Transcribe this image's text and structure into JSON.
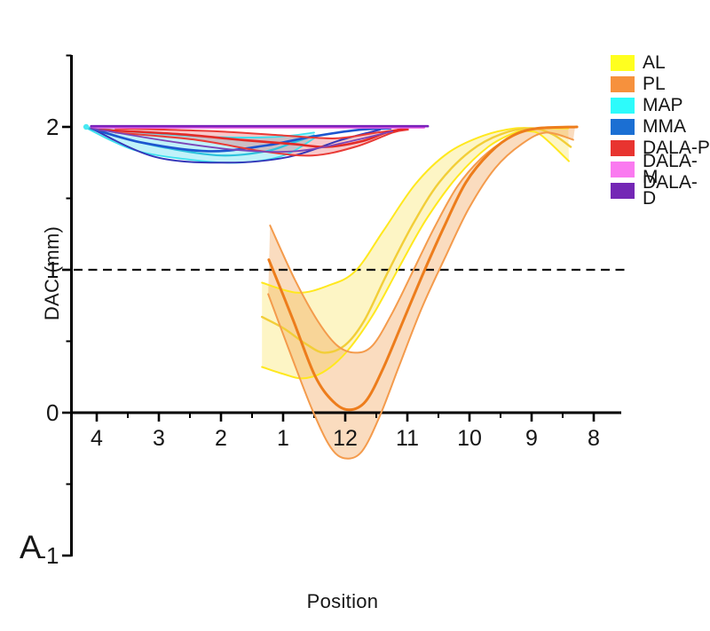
{
  "figure_type": "scientific line chart with confidence bands",
  "chart_data": {
    "type": "line",
    "title": "",
    "xlabel": "Position",
    "ylabel": "DAC (mm)",
    "panel_label": "A",
    "x_units": "tick index (0='4', 1='3', 2='2', 3='1', 4='12', 5='11', 6='10', 7='9', 8='8')",
    "x_tick_labels": [
      "4",
      "3",
      "2",
      "1",
      "12",
      "11",
      "10",
      "9",
      "8"
    ],
    "y_tick_labels": [
      "2",
      "1",
      "0",
      "-1"
    ],
    "y_major_values": [
      2,
      1,
      0,
      -1
    ],
    "y_minor_values": [
      2.5,
      1.5,
      0.5,
      -0.5
    ],
    "ylim_drawn": [
      -1,
      2.5
    ],
    "reference_line_y": 1,
    "grid": false,
    "legend_position": "top-right-outside",
    "axis_color": "#000000",
    "reference_line_color": "#111111",
    "start_marker": {
      "x": -0.17,
      "y": 2.0,
      "color": "#49E9F2"
    },
    "series": [
      {
        "name": "MAP",
        "edge_color": "#3BE0EE",
        "center_color": "#2CC2DC",
        "fill": "rgba(60,215,235,0.32)",
        "edge_width": 1.8,
        "center_width": 2.2,
        "center": [
          [
            -0.2,
            2.0
          ],
          [
            0.44,
            1.92
          ],
          [
            1.16,
            1.85
          ],
          [
            2.01,
            1.8
          ],
          [
            2.73,
            1.83
          ],
          [
            3.16,
            1.89
          ],
          [
            3.5,
            1.94
          ]
        ],
        "upper": [
          [
            -0.2,
            2.0
          ],
          [
            0.73,
            1.96
          ],
          [
            1.87,
            1.93
          ],
          [
            2.87,
            1.93
          ],
          [
            3.5,
            1.96
          ]
        ],
        "lower": [
          [
            -0.2,
            2.0
          ],
          [
            0.59,
            1.84
          ],
          [
            1.51,
            1.77
          ],
          [
            2.3,
            1.75
          ],
          [
            3.01,
            1.8
          ],
          [
            3.5,
            1.92
          ]
        ]
      },
      {
        "name": "MMA",
        "edge_color": "#3436B8",
        "center_color": "#1D55CF",
        "fill": null,
        "edge_width": 2.0,
        "center_width": 2.6,
        "center": [
          [
            -0.09,
            1.99
          ],
          [
            0.73,
            1.89
          ],
          [
            1.8,
            1.83
          ],
          [
            2.73,
            1.87
          ],
          [
            3.44,
            1.93
          ],
          [
            4.23,
            1.98
          ],
          [
            4.73,
            1.99
          ]
        ],
        "lower": [
          [
            -0.09,
            1.99
          ],
          [
            0.94,
            1.79
          ],
          [
            2.09,
            1.75
          ],
          [
            3.09,
            1.79
          ],
          [
            3.94,
            1.91
          ],
          [
            4.56,
            1.98
          ]
        ]
      },
      {
        "name": "DALA-P",
        "edge_color": "#E93A35",
        "center_color": "#E22B28",
        "fill": "rgba(230,60,70,0.28)",
        "edge_width": 2.0,
        "center_width": 2.6,
        "center": [
          [
            0.04,
            1.98
          ],
          [
            1.3,
            1.95
          ],
          [
            2.3,
            1.91
          ],
          [
            3.16,
            1.88
          ],
          [
            3.7,
            1.86
          ],
          [
            4.27,
            1.9
          ],
          [
            4.66,
            1.96
          ],
          [
            4.99,
            1.99
          ]
        ],
        "upper": [
          [
            0.3,
            1.99
          ],
          [
            1.87,
            1.97
          ],
          [
            3.01,
            1.94
          ],
          [
            3.84,
            1.92
          ],
          [
            4.51,
            1.96
          ],
          [
            5.01,
            1.99
          ]
        ],
        "lower": [
          [
            0.3,
            1.96
          ],
          [
            1.59,
            1.91
          ],
          [
            2.66,
            1.83
          ],
          [
            3.47,
            1.8
          ],
          [
            4.16,
            1.86
          ],
          [
            4.76,
            1.96
          ],
          [
            5.01,
            1.98
          ]
        ]
      },
      {
        "name": "DALA-M",
        "edge_color": "#EE63E6",
        "center_color": "#EE63E6",
        "fill": null,
        "edge_width": 2.2,
        "center_width": 2.2,
        "center": [
          [
            -0.09,
            1.995
          ],
          [
            2.6,
            1.995
          ],
          [
            5.27,
            1.995
          ]
        ]
      },
      {
        "name": "DALA-D",
        "edge_color": "#7A45B8",
        "center_color": "#7A23BB",
        "fill": null,
        "edge_width": 1.8,
        "center_width": 2.6,
        "center": [
          [
            -0.09,
            2.005
          ],
          [
            2.6,
            2.005
          ],
          [
            5.33,
            2.005
          ]
        ],
        "lower": [
          [
            -0.09,
            1.99
          ],
          [
            1.16,
            1.9
          ],
          [
            2.23,
            1.84
          ],
          [
            3.2,
            1.83
          ],
          [
            4.09,
            1.9
          ],
          [
            4.76,
            1.97
          ]
        ]
      },
      {
        "name": "AL",
        "edge_color": "#FFE81E",
        "center_color": "#F2CE38",
        "fill": "rgba(250,225,90,0.35)",
        "edge_width": 2.0,
        "center_width": 2.4,
        "center": [
          [
            2.66,
            0.67
          ],
          [
            3.01,
            0.59
          ],
          [
            3.37,
            0.48
          ],
          [
            3.66,
            0.42
          ],
          [
            3.99,
            0.47
          ],
          [
            4.3,
            0.64
          ],
          [
            4.66,
            0.96
          ],
          [
            5.09,
            1.32
          ],
          [
            5.51,
            1.61
          ],
          [
            6.01,
            1.83
          ],
          [
            6.51,
            1.95
          ],
          [
            6.99,
            1.99
          ],
          [
            7.33,
            1.95
          ],
          [
            7.63,
            1.86
          ]
        ],
        "upper": [
          [
            2.66,
            0.91
          ],
          [
            3.23,
            0.84
          ],
          [
            3.73,
            0.89
          ],
          [
            4.16,
            0.99
          ],
          [
            4.61,
            1.27
          ],
          [
            5.13,
            1.6
          ],
          [
            5.66,
            1.82
          ],
          [
            6.23,
            1.94
          ],
          [
            6.73,
            1.99
          ],
          [
            7.16,
            1.99
          ],
          [
            7.59,
            1.99
          ]
        ],
        "lower": [
          [
            2.66,
            0.32
          ],
          [
            3.01,
            0.27
          ],
          [
            3.3,
            0.24
          ],
          [
            3.63,
            0.28
          ],
          [
            4.01,
            0.42
          ],
          [
            4.44,
            0.68
          ],
          [
            4.87,
            1.02
          ],
          [
            5.3,
            1.35
          ],
          [
            5.8,
            1.65
          ],
          [
            6.3,
            1.86
          ],
          [
            6.73,
            1.96
          ],
          [
            6.94,
            1.97
          ],
          [
            7.16,
            1.94
          ],
          [
            7.6,
            1.76
          ]
        ]
      },
      {
        "name": "PL",
        "edge_color": "#F49B4C",
        "center_color": "#ED7D1C",
        "fill": "rgba(240,150,60,0.33)",
        "edge_width": 2.0,
        "center_width": 3.0,
        "center": [
          [
            2.77,
            1.07
          ],
          [
            3.16,
            0.65
          ],
          [
            3.51,
            0.26
          ],
          [
            3.8,
            0.08
          ],
          [
            4.06,
            0.02
          ],
          [
            4.33,
            0.08
          ],
          [
            4.61,
            0.31
          ],
          [
            4.94,
            0.65
          ],
          [
            5.27,
            0.99
          ],
          [
            5.59,
            1.3
          ],
          [
            5.94,
            1.61
          ],
          [
            6.33,
            1.82
          ],
          [
            6.7,
            1.94
          ],
          [
            7.09,
            1.99
          ],
          [
            7.73,
            2.0
          ]
        ],
        "upper": [
          [
            2.79,
            1.31
          ],
          [
            3.19,
            0.93
          ],
          [
            3.56,
            0.64
          ],
          [
            3.87,
            0.47
          ],
          [
            4.16,
            0.42
          ],
          [
            4.44,
            0.47
          ],
          [
            4.76,
            0.7
          ],
          [
            5.09,
            0.99
          ],
          [
            5.44,
            1.3
          ],
          [
            5.8,
            1.58
          ],
          [
            6.19,
            1.78
          ],
          [
            6.59,
            1.91
          ],
          [
            7.01,
            1.98
          ],
          [
            7.7,
            2.0
          ]
        ],
        "lower": [
          [
            2.76,
            0.83
          ],
          [
            3.13,
            0.4
          ],
          [
            3.47,
            0.02
          ],
          [
            3.76,
            -0.24
          ],
          [
            4.0,
            -0.32
          ],
          [
            4.27,
            -0.27
          ],
          [
            4.56,
            -0.02
          ],
          [
            4.87,
            0.33
          ],
          [
            5.23,
            0.73
          ],
          [
            5.59,
            1.07
          ],
          [
            5.99,
            1.43
          ],
          [
            6.41,
            1.71
          ],
          [
            6.84,
            1.88
          ],
          [
            7.23,
            1.96
          ],
          [
            7.67,
            1.91
          ]
        ]
      }
    ]
  },
  "legend": {
    "items": [
      {
        "label": "AL",
        "color": "#FFFF1F"
      },
      {
        "label": "PL",
        "color": "#F6913D"
      },
      {
        "label": "MAP",
        "color": "#2DFBFB"
      },
      {
        "label": "MMA",
        "color": "#1B6FD3"
      },
      {
        "label": "DALA-P",
        "color": "#E83430"
      },
      {
        "label": "DALA-M",
        "color": "#FA7AF0"
      },
      {
        "label": "DALA-D",
        "color": "#7427B5"
      }
    ]
  }
}
